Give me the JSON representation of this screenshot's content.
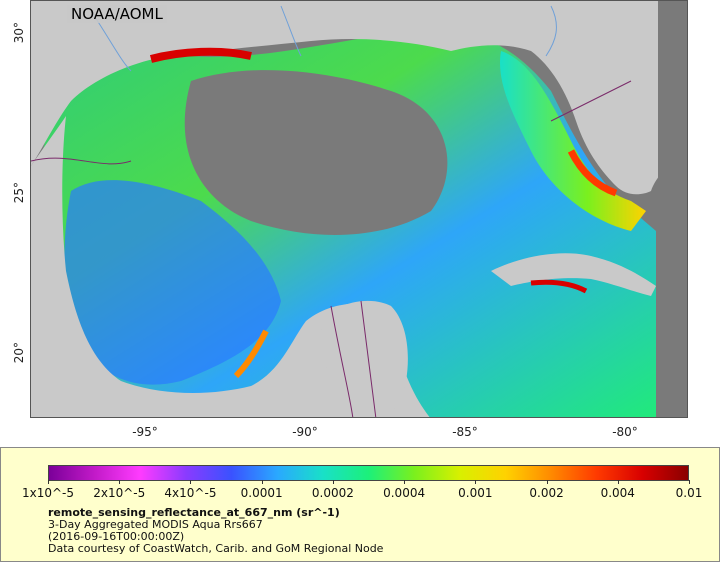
{
  "map": {
    "credit": "NOAA/AOML",
    "lat_ticks": [
      "30°",
      "25°",
      "20°"
    ],
    "lon_ticks": [
      "-95°",
      "-90°",
      "-85°",
      "-80°"
    ],
    "lon_range": [
      -98,
      -77
    ],
    "lat_range": [
      18,
      31
    ],
    "colors": {
      "land": "#c9c9c9",
      "nodata": "#7a7a7a",
      "rivers": "#6fa0d8",
      "borders": "#7a2a6a"
    }
  },
  "colorbar": {
    "tick_labels": [
      "1x10^-5",
      "2x10^-5",
      "4x10^-5",
      "0.0001",
      "0.0002",
      "0.0004",
      "0.001",
      "0.002",
      "0.004",
      "0.01"
    ],
    "colors": [
      "#7b0099",
      "#c21ac8",
      "#ff3bff",
      "#8a3bff",
      "#3a52ff",
      "#2aa8ff",
      "#19e0c8",
      "#1cf07a",
      "#7af01e",
      "#d8f000",
      "#ffd200",
      "#ff8a00",
      "#ff3a00",
      "#d80000",
      "#8a0000"
    ]
  },
  "legend": {
    "variable": "remote_sensing_reflectance_at_667_nm (sr^-1)",
    "product": "3-Day Aggregated MODIS Aqua Rrs667",
    "date": "(2016-09-16T00:00:00Z)",
    "courtesy": "Data courtesy of CoastWatch, Carib. and GoM Regional Node"
  }
}
